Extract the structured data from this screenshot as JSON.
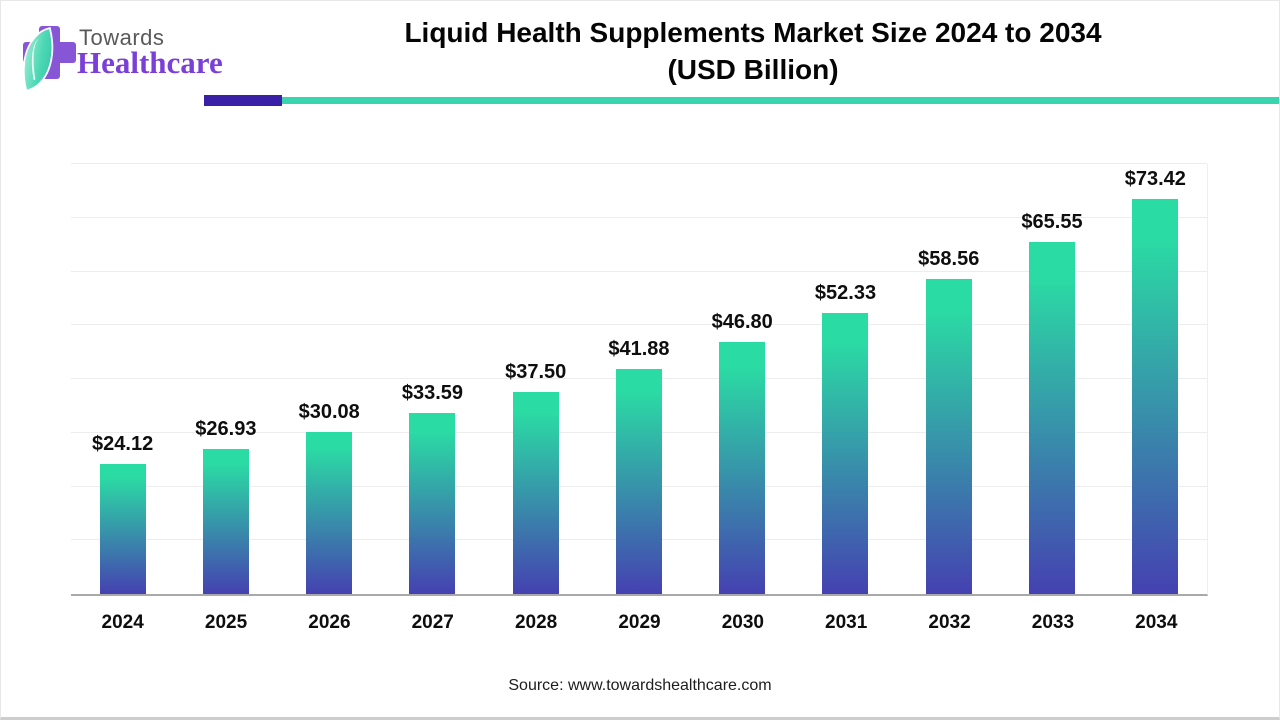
{
  "header": {
    "logo_line1": "Towards",
    "logo_line2": "Healthcare",
    "title_line1": "Liquid Health Supplements Market Size 2024 to 2034",
    "title_line2": "(USD Billion)",
    "accent_purple": "#3a20a6",
    "accent_teal": "#38d5af"
  },
  "chart_data": {
    "type": "bar",
    "title": "Liquid Health Supplements Market Size 2024 to 2034 (USD Billion)",
    "categories": [
      "2024",
      "2025",
      "2026",
      "2027",
      "2028",
      "2029",
      "2030",
      "2031",
      "2032",
      "2033",
      "2034"
    ],
    "values": [
      24.12,
      26.93,
      30.08,
      33.59,
      37.5,
      41.88,
      46.8,
      52.33,
      58.56,
      65.55,
      73.42
    ],
    "value_labels": [
      "$24.12",
      "$26.93",
      "$30.08",
      "$33.59",
      "$37.50",
      "$41.88",
      "$46.80",
      "$52.33",
      "$58.56",
      "$65.55",
      "$73.42"
    ],
    "xlabel": "",
    "ylabel": "",
    "ylim": [
      0,
      80
    ],
    "grid_step": 10,
    "grid": true,
    "legend_position": "none",
    "bar_color_top": "#2bdba4",
    "bar_color_bottom": "#4541b1"
  },
  "footer": {
    "source": "Source: www.towardshealthcare.com"
  }
}
